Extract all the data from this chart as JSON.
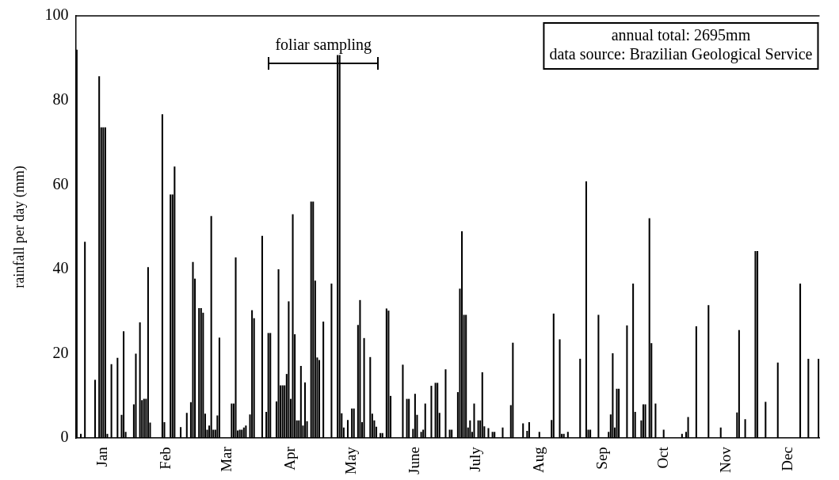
{
  "chart_data": {
    "type": "bar",
    "color": "#000000",
    "ylabel": "rainfall per day (mm)",
    "categories": [
      null,
      null,
      null,
      null,
      null,
      null,
      null,
      null,
      null,
      null,
      null,
      null,
      null,
      "Jan",
      null,
      null,
      null,
      null,
      null,
      null,
      null,
      null,
      null,
      null,
      null,
      null,
      null,
      null,
      null,
      null,
      null,
      null,
      null,
      null,
      null,
      null,
      null,
      null,
      null,
      null,
      null,
      null,
      null,
      null,
      "Feb",
      null,
      null,
      null,
      null,
      null,
      null,
      null,
      null,
      null,
      null,
      null,
      null,
      null,
      null,
      null,
      null,
      null,
      null,
      null,
      null,
      null,
      null,
      null,
      null,
      null,
      null,
      null,
      null,
      null,
      "Mar",
      null,
      null,
      null,
      null,
      null,
      null,
      null,
      null,
      null,
      null,
      null,
      null,
      null,
      null,
      null,
      null,
      null,
      null,
      null,
      null,
      null,
      null,
      null,
      null,
      null,
      null,
      null,
      null,
      null,
      null,
      "Apr",
      null,
      null,
      null,
      null,
      null,
      null,
      null,
      null,
      null,
      null,
      null,
      null,
      null,
      null,
      null,
      null,
      null,
      null,
      null,
      null,
      null,
      null,
      null,
      null,
      null,
      null,
      null,
      null,
      null,
      "May",
      null,
      null,
      null,
      null,
      null,
      null,
      null,
      null,
      null,
      null,
      null,
      null,
      null,
      null,
      null,
      null,
      null,
      null,
      null,
      null,
      null,
      null,
      null,
      null,
      null,
      null,
      null,
      null,
      null,
      null,
      "June",
      null,
      null,
      null,
      null,
      null,
      null,
      null,
      null,
      null,
      null,
      null,
      null,
      null,
      null,
      null,
      null,
      null,
      null,
      null,
      null,
      null,
      null,
      null,
      null,
      null,
      null,
      null,
      null,
      null,
      "July",
      null,
      null,
      null,
      null,
      null,
      null,
      null,
      null,
      null,
      null,
      null,
      null,
      null,
      null,
      null,
      null,
      null,
      null,
      null,
      null,
      null,
      null,
      null,
      null,
      null,
      null,
      null,
      null,
      null,
      null,
      "Aug",
      null,
      null,
      null,
      null,
      null,
      null,
      null,
      null,
      null,
      null,
      null,
      null,
      null,
      null,
      null,
      null,
      null,
      null,
      null,
      null,
      null,
      null,
      null,
      null,
      null,
      null,
      null,
      null,
      null,
      null,
      "Sep",
      null,
      null,
      null,
      null,
      null,
      null,
      null,
      null,
      null,
      null,
      null,
      null,
      null,
      null,
      null,
      null,
      null,
      null,
      null,
      null,
      null,
      null,
      null,
      null,
      null,
      null,
      null,
      null,
      null,
      "Oct",
      null,
      null,
      null,
      null,
      null,
      null,
      null,
      null,
      null,
      null,
      null,
      null,
      null,
      null,
      null,
      null,
      null,
      null,
      null,
      null,
      null,
      null,
      null,
      null,
      null,
      null,
      null,
      null,
      null,
      null,
      "Nov",
      null,
      null,
      null,
      null,
      null,
      null,
      null,
      null,
      null,
      null,
      null,
      null,
      null,
      null,
      null,
      null,
      null,
      null,
      null,
      null,
      null,
      null,
      null,
      null,
      null,
      null,
      null,
      null,
      null,
      "Dec",
      null,
      null,
      null,
      null,
      null,
      null,
      null,
      null,
      null,
      null,
      null,
      null,
      null,
      null,
      null
    ],
    "values": [
      92,
      0,
      1,
      0,
      46.5,
      0,
      0,
      0,
      0,
      13.8,
      0,
      85.7,
      73.6,
      73.6,
      73.6,
      1,
      0,
      17.5,
      0,
      0,
      19,
      0,
      5.5,
      25.3,
      1.5,
      0,
      0,
      0,
      8,
      20,
      0,
      27.4,
      9,
      9.3,
      9.3,
      40.5,
      3.7,
      0,
      0,
      0,
      0,
      0,
      76.7,
      3.8,
      0,
      0,
      57.7,
      57.7,
      64.3,
      0,
      0,
      2.6,
      0,
      0,
      6,
      0,
      8.5,
      41.7,
      37.8,
      0,
      30.8,
      30.8,
      29.7,
      5.8,
      2,
      3,
      52.6,
      2,
      2,
      5.4,
      23.8,
      0,
      0,
      0,
      0,
      0,
      8.2,
      8.2,
      42.8,
      1.8,
      2,
      2,
      2.5,
      3,
      0,
      5.6,
      30.3,
      28.4,
      0,
      0,
      0,
      47.9,
      0,
      6.2,
      24.9,
      24.9,
      0,
      0,
      8.7,
      40,
      12.5,
      12.5,
      12.5,
      15.2,
      32.4,
      9.3,
      53,
      24.6,
      4.2,
      4.2,
      17.1,
      3,
      13.2,
      4,
      0,
      56,
      56,
      37.3,
      19.1,
      18.5,
      0,
      27.6,
      0,
      0,
      0,
      36.6,
      0,
      0,
      90.7,
      90.7,
      5.9,
      2.5,
      0,
      4.3,
      0,
      7,
      7,
      0,
      26.8,
      32.7,
      3.8,
      23.7,
      0,
      0,
      19.2,
      5.8,
      4.2,
      2.7,
      0,
      1.2,
      1.2,
      0,
      30.7,
      30.2,
      10,
      0,
      0,
      0,
      0,
      0,
      17.4,
      0,
      9.3,
      9.3,
      0,
      2.2,
      10.5,
      5.5,
      0,
      1.5,
      2,
      8.2,
      0,
      0,
      12.4,
      0,
      13.1,
      13.1,
      6,
      0,
      0,
      16.3,
      0,
      2,
      2,
      0,
      0,
      10.9,
      35.4,
      49,
      29.2,
      29.2,
      2.5,
      4.2,
      1.5,
      8.2,
      0,
      4.2,
      4.2,
      15.6,
      2.8,
      0,
      2.4,
      0,
      1.5,
      1.5,
      0,
      0,
      0,
      2.5,
      0,
      0,
      0,
      7.8,
      22.6,
      0,
      0,
      0,
      0,
      3.5,
      0,
      1.7,
      3.8,
      0,
      0,
      0,
      0,
      1.5,
      0,
      0,
      0,
      0,
      0,
      4.3,
      29.5,
      0,
      0,
      23.4,
      1,
      1,
      0,
      1.5,
      0,
      0,
      0,
      0,
      0,
      18.8,
      0,
      0,
      60.8,
      2,
      2,
      0,
      0,
      0,
      29.2,
      0,
      0,
      0,
      0,
      1.5,
      5.6,
      20.1,
      2.5,
      11.7,
      11.7,
      0,
      0,
      0,
      26.7,
      0,
      0,
      36.6,
      6.2,
      0,
      0,
      4.2,
      8,
      8,
      0,
      52.1,
      22.5,
      0,
      8.2,
      0,
      0,
      0,
      2,
      0,
      0,
      0,
      0,
      0,
      0,
      0,
      0,
      1,
      0,
      1.5,
      5,
      0,
      0,
      0,
      26.5,
      0,
      0,
      0,
      0,
      0,
      31.5,
      0,
      0,
      0,
      0,
      0,
      2.5,
      0,
      0,
      0,
      0,
      0,
      0,
      0,
      6.1,
      25.6,
      0,
      0,
      4.5,
      0,
      0,
      0,
      0,
      44.3,
      44.3,
      0,
      0,
      0,
      8.6,
      0,
      0,
      0,
      0,
      0,
      17.9,
      0,
      0,
      0,
      0,
      0,
      0,
      0,
      0,
      0,
      0,
      36.6,
      0,
      0,
      0,
      18.8,
      0,
      0,
      0,
      0,
      18.8
    ],
    "ylim": [
      0,
      100
    ],
    "yticks": [
      0,
      20,
      40,
      60,
      80,
      100
    ],
    "annotations": [
      "foliar sampling",
      "annual total: 2695mm",
      "data source: Brazilian Geological Service"
    ]
  }
}
